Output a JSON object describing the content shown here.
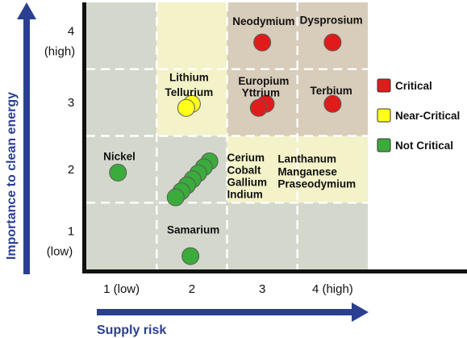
{
  "chart_data": {
    "type": "scatter",
    "title": "",
    "xlabel": "Supply risk",
    "ylabel": "Importance to clean energy",
    "xlim": [
      0.5,
      4.5
    ],
    "ylim": [
      0.5,
      4.5
    ],
    "x_ticks": [
      {
        "value": 1,
        "label": "1 (low)"
      },
      {
        "value": 2,
        "label": "2"
      },
      {
        "value": 3,
        "label": "3"
      },
      {
        "value": 4,
        "label": "4 (high)"
      }
    ],
    "y_ticks": [
      {
        "value": 4,
        "label": "4",
        "sublabel": "(high)"
      },
      {
        "value": 3,
        "label": "3",
        "sublabel": ""
      },
      {
        "value": 2,
        "label": "2",
        "sublabel": ""
      },
      {
        "value": 1,
        "label": "1",
        "sublabel": "(low)"
      }
    ],
    "grid": true,
    "legend_placement": "right",
    "categories": [
      {
        "key": "critical",
        "name": "Critical",
        "color": "#e01b1b"
      },
      {
        "key": "near",
        "name": "Near-Critical",
        "color": "#ffff1a"
      },
      {
        "key": "not",
        "name": "Not Critical",
        "color": "#3bab3b"
      }
    ],
    "background": {
      "gray": "#d4d8cc",
      "yellow": "#f3f2c8",
      "tan": "#d8ccba",
      "cells": [
        {
          "x": 1,
          "y": 4,
          "fill": "gray"
        },
        {
          "x": 2,
          "y": 4,
          "fill": "yellow"
        },
        {
          "x": 3,
          "y": 4,
          "fill": "tan"
        },
        {
          "x": 4,
          "y": 4,
          "fill": "tan"
        },
        {
          "x": 1,
          "y": 3,
          "fill": "gray"
        },
        {
          "x": 2,
          "y": 3,
          "fill": "yellow"
        },
        {
          "x": 3,
          "y": 3,
          "fill": "tan"
        },
        {
          "x": 4,
          "y": 3,
          "fill": "tan"
        },
        {
          "x": 1,
          "y": 2,
          "fill": "gray"
        },
        {
          "x": 2,
          "y": 2,
          "fill": "gray"
        },
        {
          "x": 3,
          "y": 2,
          "fill": "yellow"
        },
        {
          "x": 4,
          "y": 2,
          "fill": "yellow"
        },
        {
          "x": 1,
          "y": 1,
          "fill": "gray"
        },
        {
          "x": 2,
          "y": 1,
          "fill": "gray"
        },
        {
          "x": 3,
          "y": 1,
          "fill": "gray"
        },
        {
          "x": 4,
          "y": 1,
          "fill": "gray"
        }
      ]
    },
    "points": [
      {
        "x": 3.0,
        "y": 3.9,
        "cat": "critical"
      },
      {
        "x": 4.0,
        "y": 3.9,
        "cat": "critical"
      },
      {
        "x": 3.05,
        "y": 2.98,
        "cat": "critical"
      },
      {
        "x": 2.95,
        "y": 2.92,
        "cat": "critical"
      },
      {
        "x": 4.0,
        "y": 2.98,
        "cat": "critical"
      },
      {
        "x": 2.0,
        "y": 2.98,
        "cat": "near"
      },
      {
        "x": 1.92,
        "y": 2.92,
        "cat": "near"
      },
      {
        "x": 0.95,
        "y": 1.95,
        "cat": "not"
      },
      {
        "x": 2.25,
        "y": 2.12,
        "cat": "not"
      },
      {
        "x": 2.17,
        "y": 2.03,
        "cat": "not"
      },
      {
        "x": 2.09,
        "y": 1.94,
        "cat": "not"
      },
      {
        "x": 2.01,
        "y": 1.85,
        "cat": "not"
      },
      {
        "x": 1.93,
        "y": 1.76,
        "cat": "not"
      },
      {
        "x": 1.85,
        "y": 1.67,
        "cat": "not"
      },
      {
        "x": 1.77,
        "y": 1.58,
        "cat": "not"
      },
      {
        "x": 1.98,
        "y": 0.7,
        "cat": "not"
      }
    ],
    "annotations": [
      {
        "text": "Neodymium",
        "x": 3.02,
        "y": 4.22
      },
      {
        "text": "Dysprosium",
        "x": 3.98,
        "y": 4.24
      },
      {
        "text": "Lithium",
        "x": 1.96,
        "y": 3.38
      },
      {
        "text": "Tellurium",
        "x": 1.96,
        "y": 3.16
      },
      {
        "text": "Europium",
        "x": 3.02,
        "y": 3.33
      },
      {
        "text": "Yttrium",
        "x": 2.98,
        "y": 3.15
      },
      {
        "text": "Terbium",
        "x": 3.98,
        "y": 3.18
      },
      {
        "text": "Nickel",
        "x": 0.97,
        "y": 2.2
      },
      {
        "text": "Cerium",
        "x": 2.5,
        "y": 2.18,
        "anchor": "start"
      },
      {
        "text": "Cobalt",
        "x": 2.5,
        "y": 1.99,
        "anchor": "start"
      },
      {
        "text": "Gallium",
        "x": 2.5,
        "y": 1.81,
        "anchor": "start"
      },
      {
        "text": "Indium",
        "x": 2.5,
        "y": 1.63,
        "anchor": "start"
      },
      {
        "text": "Lanthanum",
        "x": 3.22,
        "y": 2.16,
        "anchor": "start"
      },
      {
        "text": "Manganese",
        "x": 3.22,
        "y": 1.97,
        "anchor": "start"
      },
      {
        "text": "Praseodymium",
        "x": 3.22,
        "y": 1.79,
        "anchor": "start"
      },
      {
        "text": "Samarium",
        "x": 2.02,
        "y": 1.1
      }
    ]
  }
}
